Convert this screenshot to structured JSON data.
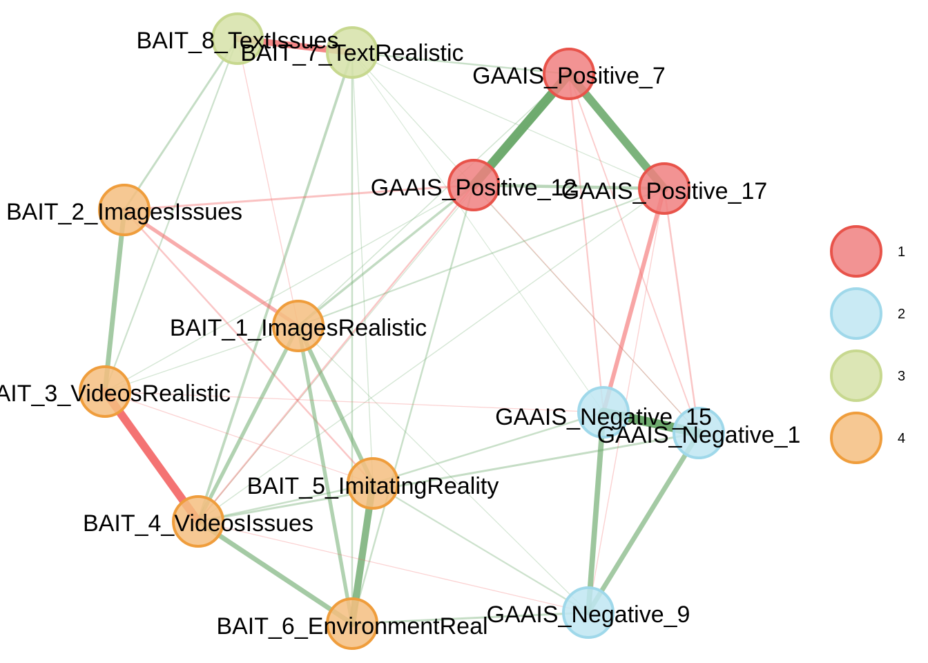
{
  "groups": [
    {
      "id": "1",
      "label": "1",
      "fill": "#f08080",
      "stroke": "#e8534a"
    },
    {
      "id": "2",
      "label": "2",
      "fill": "#bfe6f2",
      "stroke": "#9fd8ea"
    },
    {
      "id": "3",
      "label": "3",
      "fill": "#d6e2a8",
      "stroke": "#c7d88f"
    },
    {
      "id": "4",
      "label": "4",
      "fill": "#f5be80",
      "stroke": "#ef9d3c"
    }
  ],
  "edge_colors": {
    "positive": "#6aa86a",
    "negative": "#f26060"
  },
  "nodes": [
    {
      "id": "BAIT_8_TextIssues",
      "label": "BAIT_8_TextIssues",
      "group": "3"
    },
    {
      "id": "BAIT_7_TextRealistic",
      "label": "BAIT_7_TextRealistic",
      "group": "3"
    },
    {
      "id": "GAAIS_Positive_7",
      "label": "GAAIS_Positive_7",
      "group": "1"
    },
    {
      "id": "GAAIS_Positive_12",
      "label": "GAAIS_Positive_12",
      "group": "1"
    },
    {
      "id": "GAAIS_Positive_17",
      "label": "GAAIS_Positive_17",
      "group": "1"
    },
    {
      "id": "BAIT_2_ImagesIssues",
      "label": "BAIT_2_ImagesIssues",
      "group": "4"
    },
    {
      "id": "BAIT_1_ImagesRealistic",
      "label": "BAIT_1_ImagesRealistic",
      "group": "4"
    },
    {
      "id": "BAIT_3_VideosRealistic",
      "label": "BAIT_3_VideosRealistic",
      "group": "4"
    },
    {
      "id": "GAAIS_Negative_15",
      "label": "GAAIS_Negative_15",
      "group": "2"
    },
    {
      "id": "GAAIS_Negative_1",
      "label": "GAAIS_Negative_1",
      "group": "2"
    },
    {
      "id": "BAIT_5_ImitatingReality",
      "label": "BAIT_5_ImitatingReality",
      "group": "4"
    },
    {
      "id": "BAIT_4_VideosIssues",
      "label": "BAIT_4_VideosIssues",
      "group": "4"
    },
    {
      "id": "BAIT_6_EnvironmentReal",
      "label": "BAIT_6_EnvironmentReal",
      "group": "4"
    },
    {
      "id": "GAAIS_Negative_9",
      "label": "GAAIS_Negative_9",
      "group": "2"
    }
  ],
  "edges": [
    {
      "source": "BAIT_8_TextIssues",
      "target": "BAIT_7_TextRealistic",
      "sign": "negative",
      "weight": 0.55
    },
    {
      "source": "BAIT_7_TextRealistic",
      "target": "GAAIS_Positive_7",
      "sign": "positive",
      "weight": 0.12
    },
    {
      "source": "BAIT_8_TextIssues",
      "target": "BAIT_2_ImagesIssues",
      "sign": "positive",
      "weight": 0.15
    },
    {
      "source": "BAIT_8_TextIssues",
      "target": "BAIT_3_VideosRealistic",
      "sign": "positive",
      "weight": 0.1
    },
    {
      "source": "BAIT_8_TextIssues",
      "target": "BAIT_1_ImagesRealistic",
      "sign": "negative",
      "weight": 0.05
    },
    {
      "source": "BAIT_7_TextRealistic",
      "target": "BAIT_4_VideosIssues",
      "sign": "positive",
      "weight": 0.2
    },
    {
      "source": "BAIT_7_TextRealistic",
      "target": "BAIT_6_EnvironmentReal",
      "sign": "positive",
      "weight": 0.12
    },
    {
      "source": "BAIT_7_TextRealistic",
      "target": "GAAIS_Negative_1",
      "sign": "positive",
      "weight": 0.04
    },
    {
      "source": "BAIT_7_TextRealistic",
      "target": "BAIT_5_ImitatingReality",
      "sign": "positive",
      "weight": 0.05
    },
    {
      "source": "BAIT_7_TextRealistic",
      "target": "GAAIS_Positive_17",
      "sign": "positive",
      "weight": 0.04
    },
    {
      "source": "BAIT_7_TextRealistic",
      "target": "GAAIS_Negative_15",
      "sign": "positive",
      "weight": 0.03
    },
    {
      "source": "GAAIS_Positive_7",
      "target": "GAAIS_Positive_12",
      "sign": "positive",
      "weight": 0.8
    },
    {
      "source": "GAAIS_Positive_7",
      "target": "GAAIS_Positive_17",
      "sign": "positive",
      "weight": 0.7
    },
    {
      "source": "GAAIS_Positive_7",
      "target": "GAAIS_Negative_15",
      "sign": "negative",
      "weight": 0.1
    },
    {
      "source": "GAAIS_Positive_7",
      "target": "GAAIS_Negative_1",
      "sign": "negative",
      "weight": 0.08
    },
    {
      "source": "GAAIS_Positive_7",
      "target": "BAIT_1_ImagesRealistic",
      "sign": "positive",
      "weight": 0.06
    },
    {
      "source": "GAAIS_Positive_7",
      "target": "BAIT_4_VideosIssues",
      "sign": "positive",
      "weight": 0.05
    },
    {
      "source": "GAAIS_Positive_12",
      "target": "GAAIS_Positive_17",
      "sign": "positive",
      "weight": 0.25
    },
    {
      "source": "GAAIS_Positive_12",
      "target": "BAIT_2_ImagesIssues",
      "sign": "negative",
      "weight": 0.15
    },
    {
      "source": "GAAIS_Positive_12",
      "target": "BAIT_1_ImagesRealistic",
      "sign": "positive",
      "weight": 0.18
    },
    {
      "source": "GAAIS_Positive_12",
      "target": "BAIT_4_VideosIssues",
      "sign": "negative",
      "weight": 0.12
    },
    {
      "source": "GAAIS_Positive_12",
      "target": "BAIT_6_EnvironmentReal",
      "sign": "positive",
      "weight": 0.12
    },
    {
      "source": "GAAIS_Positive_12",
      "target": "BAIT_3_VideosRealistic",
      "sign": "positive",
      "weight": 0.05
    },
    {
      "source": "GAAIS_Positive_12",
      "target": "GAAIS_Negative_1",
      "sign": "negative",
      "weight": 0.05
    },
    {
      "source": "GAAIS_Positive_17",
      "target": "GAAIS_Negative_15",
      "sign": "negative",
      "weight": 0.35
    },
    {
      "source": "GAAIS_Positive_17",
      "target": "BAIT_1_ImagesRealistic",
      "sign": "positive",
      "weight": 0.1
    },
    {
      "source": "GAAIS_Positive_17",
      "target": "GAAIS_Negative_1",
      "sign": "negative",
      "weight": 0.12
    },
    {
      "source": "GAAIS_Positive_17",
      "target": "BAIT_4_VideosIssues",
      "sign": "positive",
      "weight": 0.05
    },
    {
      "source": "GAAIS_Positive_17",
      "target": "GAAIS_Negative_9",
      "sign": "negative",
      "weight": 0.05
    },
    {
      "source": "BAIT_2_ImagesIssues",
      "target": "BAIT_3_VideosRealistic",
      "sign": "positive",
      "weight": 0.4
    },
    {
      "source": "BAIT_2_ImagesIssues",
      "target": "BAIT_1_ImagesRealistic",
      "sign": "negative",
      "weight": 0.3
    },
    {
      "source": "BAIT_2_ImagesIssues",
      "target": "BAIT_5_ImitatingReality",
      "sign": "negative",
      "weight": 0.12
    },
    {
      "source": "BAIT_1_ImagesRealistic",
      "target": "BAIT_3_VideosRealistic",
      "sign": "positive",
      "weight": 0.05
    },
    {
      "source": "BAIT_1_ImagesRealistic",
      "target": "BAIT_5_ImitatingReality",
      "sign": "positive",
      "weight": 0.35
    },
    {
      "source": "BAIT_1_ImagesRealistic",
      "target": "BAIT_4_VideosIssues",
      "sign": "positive",
      "weight": 0.3
    },
    {
      "source": "BAIT_1_ImagesRealistic",
      "target": "BAIT_6_EnvironmentReal",
      "sign": "positive",
      "weight": 0.3
    },
    {
      "source": "BAIT_1_ImagesRealistic",
      "target": "GAAIS_Negative_9",
      "sign": "positive",
      "weight": 0.04
    },
    {
      "source": "BAIT_3_VideosRealistic",
      "target": "BAIT_4_VideosIssues",
      "sign": "negative",
      "weight": 0.7
    },
    {
      "source": "BAIT_3_VideosRealistic",
      "target": "BAIT_5_ImitatingReality",
      "sign": "negative",
      "weight": 0.04
    },
    {
      "source": "BAIT_3_VideosRealistic",
      "target": "GAAIS_Negative_15",
      "sign": "negative",
      "weight": 0.04
    },
    {
      "source": "BAIT_5_ImitatingReality",
      "target": "BAIT_6_EnvironmentReal",
      "sign": "positive",
      "weight": 0.6
    },
    {
      "source": "BAIT_5_ImitatingReality",
      "target": "BAIT_4_VideosIssues",
      "sign": "positive",
      "weight": 0.12
    },
    {
      "source": "BAIT_5_ImitatingReality",
      "target": "GAAIS_Negative_15",
      "sign": "positive",
      "weight": 0.12
    },
    {
      "source": "BAIT_5_ImitatingReality",
      "target": "GAAIS_Negative_9",
      "sign": "positive",
      "weight": 0.1
    },
    {
      "source": "BAIT_4_VideosIssues",
      "target": "BAIT_6_EnvironmentReal",
      "sign": "positive",
      "weight": 0.4
    },
    {
      "source": "BAIT_4_VideosIssues",
      "target": "GAAIS_Negative_1",
      "sign": "positive",
      "weight": 0.15
    },
    {
      "source": "BAIT_4_VideosIssues",
      "target": "GAAIS_Negative_9",
      "sign": "negative",
      "weight": 0.04
    },
    {
      "source": "BAIT_6_EnvironmentReal",
      "target": "GAAIS_Negative_9",
      "sign": "positive",
      "weight": 0.15
    },
    {
      "source": "GAAIS_Negative_15",
      "target": "GAAIS_Negative_1",
      "sign": "positive",
      "weight": 0.8
    },
    {
      "source": "GAAIS_Negative_15",
      "target": "GAAIS_Negative_9",
      "sign": "positive",
      "weight": 0.45
    },
    {
      "source": "GAAIS_Negative_1",
      "target": "GAAIS_Negative_9",
      "sign": "positive",
      "weight": 0.4
    }
  ]
}
